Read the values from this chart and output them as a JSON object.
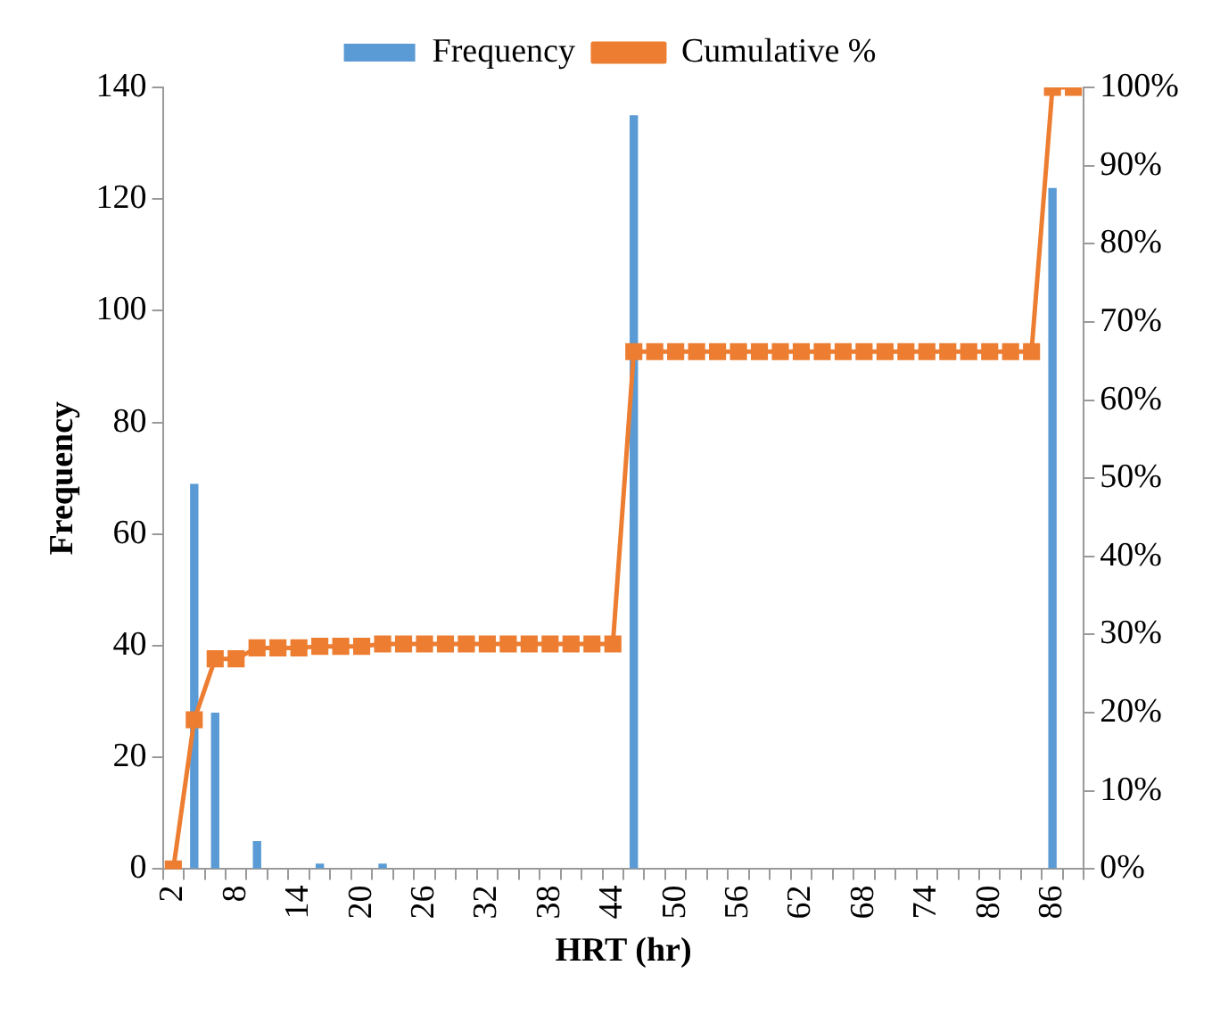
{
  "chart_data": {
    "type": "bar",
    "xlabel": "HRT (hr)",
    "ylabel": "Frequency",
    "categories": [
      "2",
      null,
      null,
      "8",
      null,
      null,
      "14",
      null,
      null,
      "20",
      null,
      null,
      "26",
      null,
      null,
      "32",
      null,
      null,
      "38",
      null,
      null,
      "44",
      null,
      null,
      "50",
      null,
      null,
      "56",
      null,
      null,
      "62",
      null,
      null,
      "68",
      null,
      null,
      "74",
      null,
      null,
      "80",
      null,
      null,
      "86",
      null
    ],
    "series": [
      {
        "name": "Frequency",
        "color": "#5b9bd5",
        "values": [
          0,
          69,
          28,
          0,
          5,
          0,
          0,
          1,
          0,
          0,
          1,
          0,
          0,
          0,
          0,
          0,
          0,
          0,
          0,
          0,
          0,
          0,
          135,
          0,
          0,
          0,
          0,
          0,
          0,
          0,
          0,
          0,
          0,
          0,
          0,
          0,
          0,
          0,
          0,
          0,
          0,
          0,
          122,
          0
        ]
      },
      {
        "name": "Cumulative %",
        "type": "line",
        "axis": "y2",
        "color": "#ed7d31",
        "marker": "square",
        "values": [
          0,
          19.1,
          26.9,
          26.9,
          28.3,
          28.3,
          28.3,
          28.5,
          28.5,
          28.5,
          28.8,
          28.8,
          28.8,
          28.8,
          28.8,
          28.8,
          28.8,
          28.8,
          28.8,
          28.8,
          28.8,
          28.8,
          66.2,
          66.2,
          66.2,
          66.2,
          66.2,
          66.2,
          66.2,
          66.2,
          66.2,
          66.2,
          66.2,
          66.2,
          66.2,
          66.2,
          66.2,
          66.2,
          66.2,
          66.2,
          66.2,
          66.2,
          100,
          100
        ]
      }
    ],
    "ylim": [
      0,
      140
    ],
    "yticks": [
      0,
      20,
      40,
      60,
      80,
      100,
      120,
      140
    ],
    "y2lim": [
      0,
      100
    ],
    "y2ticks": [
      {
        "value": 0,
        "label": "0%"
      },
      {
        "value": 10,
        "label": "10%"
      },
      {
        "value": 20,
        "label": "20%"
      },
      {
        "value": 30,
        "label": "30%"
      },
      {
        "value": 40,
        "label": "40%"
      },
      {
        "value": 50,
        "label": "50%"
      },
      {
        "value": 60,
        "label": "60%"
      },
      {
        "value": 70,
        "label": "70%"
      },
      {
        "value": 80,
        "label": "80%"
      },
      {
        "value": 90,
        "label": "90%"
      },
      {
        "value": 100,
        "label": "100%"
      }
    ],
    "grid": false,
    "legend": "top"
  }
}
